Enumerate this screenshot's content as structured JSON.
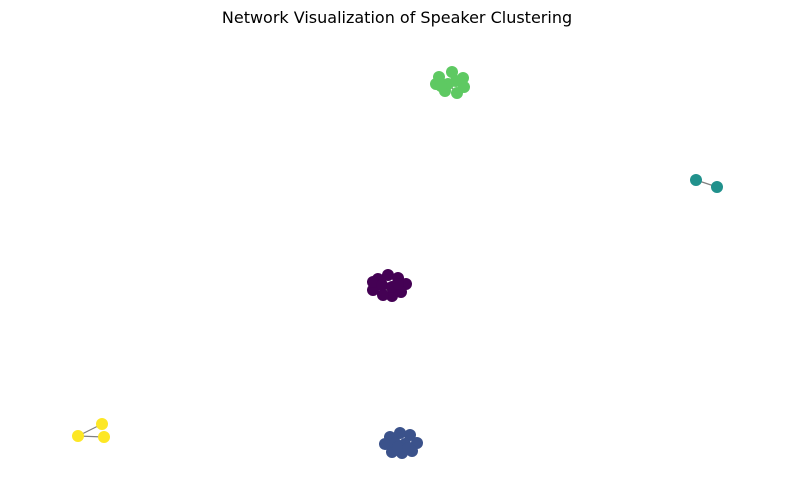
{
  "title": "Network Visualization of Speaker Clustering",
  "colors": {
    "edge": "#808080",
    "cluster_0": "#440154",
    "cluster_1": "#3b528b",
    "cluster_2": "#21918c",
    "cluster_3": "#5ec962",
    "cluster_4": "#fde725"
  },
  "graph": {
    "clusters": [
      {
        "id": 0,
        "color_key": "cluster_0",
        "node_count": 12
      },
      {
        "id": 1,
        "color_key": "cluster_1",
        "node_count": 12
      },
      {
        "id": 2,
        "color_key": "cluster_2",
        "node_count": 2
      },
      {
        "id": 3,
        "color_key": "cluster_3",
        "node_count": 10
      },
      {
        "id": 4,
        "color_key": "cluster_4",
        "node_count": 3
      }
    ]
  }
}
